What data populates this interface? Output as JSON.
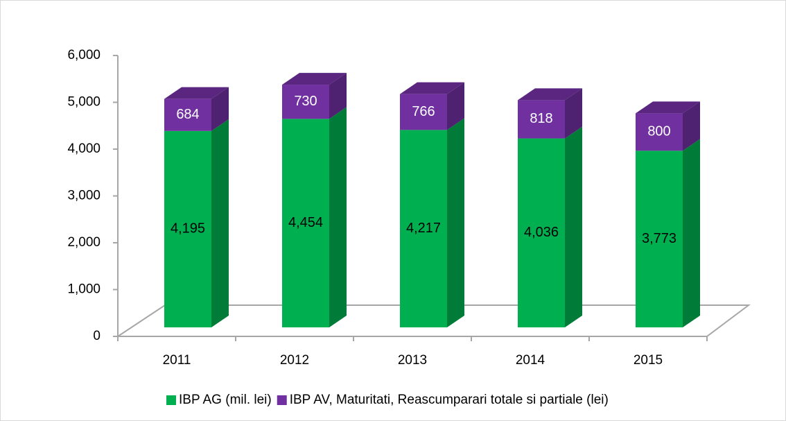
{
  "chart_data": {
    "type": "bar3d_stacked",
    "categories": [
      "2011",
      "2012",
      "2013",
      "2014",
      "2015"
    ],
    "series": [
      {
        "name": "IBP AG (mil. lei)",
        "color": "#00b050",
        "values": [
          4195,
          4454,
          4217,
          4036,
          3773
        ],
        "value_labels": [
          "4,195",
          "4,454",
          "4,217",
          "4,036",
          "3,773"
        ]
      },
      {
        "name": "IBP AV, Maturitati, Reascumparari totale si partiale (lei)",
        "color": "#7030a0",
        "values": [
          684,
          730,
          766,
          818,
          800
        ]
      }
    ],
    "ylim": [
      0,
      6000
    ],
    "yticks": [
      0,
      {
        "value": 1000,
        "label": "1,000"
      },
      {
        "value": 2000,
        "label": "2,000"
      },
      {
        "value": 3000,
        "label": "3,000"
      },
      {
        "value": 4000,
        "label": "4,000"
      },
      {
        "value": 5000,
        "label": "5,000"
      },
      {
        "value": 6000,
        "label": "6,000"
      }
    ]
  }
}
